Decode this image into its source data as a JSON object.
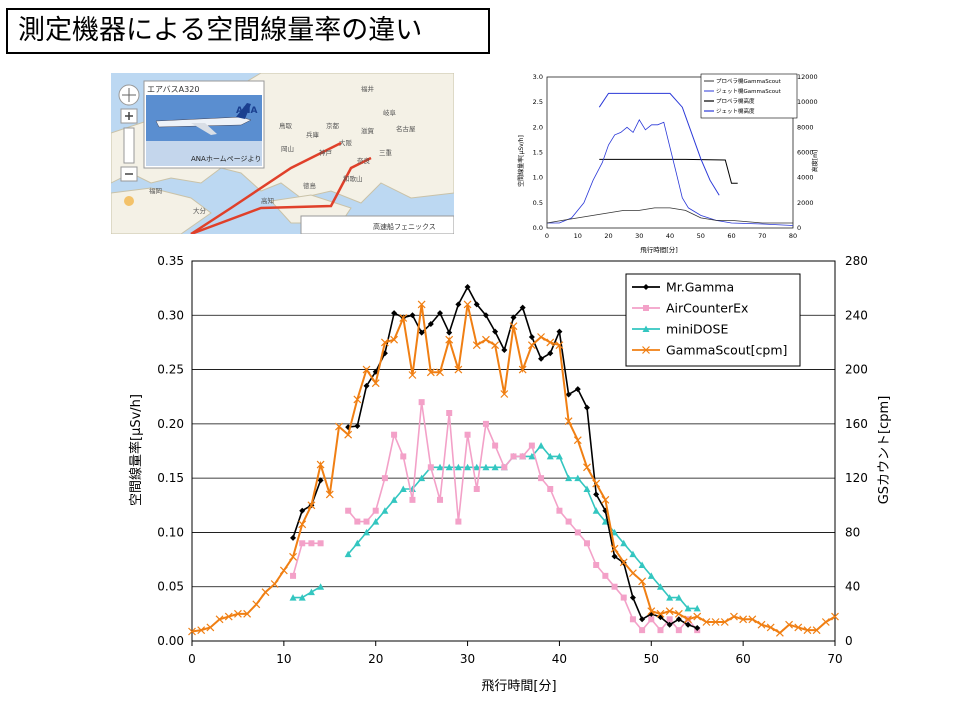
{
  "title": "測定機器による空間線量率の違い",
  "map": {
    "caption": "エアバスA320",
    "brand": "ANA",
    "brand_sub": "ANAホームページより",
    "ship_label": "高速船フェニックス",
    "colors": {
      "sea": "#bcd8f2",
      "land": "#f4f1e6",
      "route": "#e0402a"
    },
    "icons": [
      "zoom-in-icon",
      "zoom-out-icon",
      "pan-icon",
      "pegman-icon",
      "airplane-icon"
    ],
    "places": [
      "福井",
      "京都",
      "奈良",
      "岐阜",
      "名古屋",
      "大阪",
      "神戸",
      "三重",
      "和歌山",
      "福岡",
      "大分",
      "広島",
      "徳島",
      "高知",
      "岡山",
      "鳥取",
      "兵庫",
      "滋賀"
    ]
  },
  "inset": {
    "legend": [
      "プロペラ機GammaScout",
      "ジェット機GammaScout",
      "プロペラ機高度",
      "ジェット機高度"
    ],
    "xlabel": "飛行時間[分]",
    "ylabel": "空間線量率[μSv/h]",
    "y2label": "高度[m]",
    "xticks": [
      0,
      10,
      20,
      30,
      40,
      50,
      60,
      70,
      80
    ],
    "yticks": [
      "0.0",
      "0.5",
      "1.0",
      "1.5",
      "2.0",
      "2.5",
      "3.0"
    ],
    "y2ticks": [
      0,
      2000,
      4000,
      6000,
      8000,
      10000,
      12000
    ]
  },
  "chart_data": {
    "type": "line",
    "title": "",
    "xlabel": "飛行時間[分]",
    "ylabel": "空間線量率[μSv/h]",
    "y2label": "GSカウント[cpm]",
    "xlim": [
      0,
      70
    ],
    "ylim": [
      0,
      0.35
    ],
    "y2lim": [
      0,
      280
    ],
    "xticks": [
      0,
      10,
      20,
      30,
      40,
      50,
      60,
      70
    ],
    "yticks": [
      "0.00",
      "0.05",
      "0.10",
      "0.15",
      "0.20",
      "0.25",
      "0.30",
      "0.35"
    ],
    "y2ticks": [
      0,
      40,
      80,
      120,
      160,
      200,
      240,
      280
    ],
    "grid": true,
    "legend_position": "top-right",
    "series": [
      {
        "name": "Mr.Gamma",
        "axis": "left",
        "color": "#000000",
        "marker": "diamond",
        "points": [
          [
            11,
            0.095
          ],
          [
            12,
            0.12
          ],
          [
            13,
            0.125
          ],
          [
            14,
            0.148
          ],
          [
            17,
            0.197
          ],
          [
            18,
            0.198
          ],
          [
            19,
            0.235
          ],
          [
            20,
            0.248
          ],
          [
            21,
            0.265
          ],
          [
            22,
            0.302
          ],
          [
            23,
            0.298
          ],
          [
            24,
            0.3
          ],
          [
            25,
            0.284
          ],
          [
            26,
            0.292
          ],
          [
            27,
            0.302
          ],
          [
            28,
            0.284
          ],
          [
            29,
            0.31
          ],
          [
            30,
            0.326
          ],
          [
            31,
            0.31
          ],
          [
            32,
            0.3
          ],
          [
            33,
            0.285
          ],
          [
            34,
            0.268
          ],
          [
            35,
            0.298
          ],
          [
            36,
            0.307
          ],
          [
            37,
            0.28
          ],
          [
            38,
            0.26
          ],
          [
            39,
            0.265
          ],
          [
            40,
            0.285
          ],
          [
            41,
            0.227
          ],
          [
            42,
            0.232
          ],
          [
            43,
            0.215
          ],
          [
            44,
            0.135
          ],
          [
            45,
            0.12
          ],
          [
            46,
            0.078
          ],
          [
            47,
            0.072
          ],
          [
            48,
            0.04
          ],
          [
            49,
            0.02
          ],
          [
            50,
            0.025
          ],
          [
            51,
            0.022
          ],
          [
            52,
            0.015
          ],
          [
            53,
            0.02
          ],
          [
            54,
            0.015
          ],
          [
            55,
            0.012
          ]
        ]
      },
      {
        "name": "AirCounterEx",
        "axis": "left",
        "color": "#f3a1c8",
        "marker": "square",
        "points": [
          [
            11,
            0.06
          ],
          [
            12,
            0.09
          ],
          [
            13,
            0.09
          ],
          [
            14,
            0.09
          ],
          [
            17,
            0.12
          ],
          [
            18,
            0.11
          ],
          [
            19,
            0.11
          ],
          [
            20,
            0.12
          ],
          [
            21,
            0.15
          ],
          [
            22,
            0.19
          ],
          [
            23,
            0.17
          ],
          [
            24,
            0.13
          ],
          [
            25,
            0.22
          ],
          [
            26,
            0.16
          ],
          [
            27,
            0.13
          ],
          [
            28,
            0.21
          ],
          [
            29,
            0.11
          ],
          [
            30,
            0.19
          ],
          [
            31,
            0.14
          ],
          [
            32,
            0.2
          ],
          [
            33,
            0.18
          ],
          [
            34,
            0.16
          ],
          [
            35,
            0.17
          ],
          [
            36,
            0.17
          ],
          [
            37,
            0.18
          ],
          [
            38,
            0.15
          ],
          [
            39,
            0.14
          ],
          [
            40,
            0.12
          ],
          [
            41,
            0.11
          ],
          [
            42,
            0.1
          ],
          [
            43,
            0.09
          ],
          [
            44,
            0.07
          ],
          [
            45,
            0.06
          ],
          [
            46,
            0.05
          ],
          [
            47,
            0.04
          ],
          [
            48,
            0.02
          ],
          [
            49,
            0.01
          ],
          [
            50,
            0.02
          ],
          [
            51,
            0.01
          ],
          [
            52,
            0.02
          ],
          [
            53,
            0.01
          ],
          [
            54,
            0.02
          ],
          [
            55,
            0.01
          ]
        ]
      },
      {
        "name": "miniDOSE",
        "axis": "left",
        "color": "#33c6c0",
        "marker": "triangle",
        "points": [
          [
            11,
            0.04
          ],
          [
            12,
            0.04
          ],
          [
            13,
            0.045
          ],
          [
            14,
            0.05
          ],
          [
            17,
            0.08
          ],
          [
            18,
            0.09
          ],
          [
            19,
            0.1
          ],
          [
            20,
            0.11
          ],
          [
            21,
            0.12
          ],
          [
            22,
            0.13
          ],
          [
            23,
            0.14
          ],
          [
            24,
            0.14
          ],
          [
            25,
            0.15
          ],
          [
            26,
            0.16
          ],
          [
            27,
            0.16
          ],
          [
            28,
            0.16
          ],
          [
            29,
            0.16
          ],
          [
            30,
            0.16
          ],
          [
            31,
            0.16
          ],
          [
            32,
            0.16
          ],
          [
            33,
            0.16
          ],
          [
            34,
            0.16
          ],
          [
            35,
            0.17
          ],
          [
            36,
            0.17
          ],
          [
            37,
            0.17
          ],
          [
            38,
            0.18
          ],
          [
            39,
            0.17
          ],
          [
            40,
            0.17
          ],
          [
            41,
            0.15
          ],
          [
            42,
            0.15
          ],
          [
            43,
            0.14
          ],
          [
            44,
            0.12
          ],
          [
            45,
            0.11
          ],
          [
            46,
            0.1
          ],
          [
            47,
            0.09
          ],
          [
            48,
            0.08
          ],
          [
            49,
            0.07
          ],
          [
            50,
            0.06
          ],
          [
            51,
            0.05
          ],
          [
            52,
            0.04
          ],
          [
            53,
            0.04
          ],
          [
            54,
            0.03
          ],
          [
            55,
            0.03
          ]
        ]
      },
      {
        "name": "GammaScout[cpm]",
        "axis": "right",
        "color": "#f07f13",
        "marker": "x",
        "points": [
          [
            0,
            7
          ],
          [
            1,
            8
          ],
          [
            2,
            10
          ],
          [
            3,
            16
          ],
          [
            4,
            18
          ],
          [
            5,
            20
          ],
          [
            6,
            20
          ],
          [
            7,
            27
          ],
          [
            8,
            36
          ],
          [
            9,
            42
          ],
          [
            10,
            52
          ],
          [
            11,
            62
          ],
          [
            12,
            86
          ],
          [
            13,
            100
          ],
          [
            14,
            130
          ],
          [
            15,
            108
          ],
          [
            16,
            158
          ],
          [
            17,
            152
          ],
          [
            18,
            178
          ],
          [
            19,
            200
          ],
          [
            20,
            190
          ],
          [
            21,
            220
          ],
          [
            22,
            222
          ],
          [
            23,
            238
          ],
          [
            24,
            196
          ],
          [
            25,
            248
          ],
          [
            26,
            198
          ],
          [
            27,
            198
          ],
          [
            28,
            222
          ],
          [
            29,
            200
          ],
          [
            30,
            248
          ],
          [
            31,
            218
          ],
          [
            32,
            222
          ],
          [
            33,
            218
          ],
          [
            34,
            182
          ],
          [
            35,
            232
          ],
          [
            36,
            200
          ],
          [
            37,
            218
          ],
          [
            38,
            224
          ],
          [
            39,
            220
          ],
          [
            40,
            218
          ],
          [
            41,
            162
          ],
          [
            42,
            148
          ],
          [
            43,
            128
          ],
          [
            44,
            116
          ],
          [
            45,
            104
          ],
          [
            46,
            68
          ],
          [
            47,
            58
          ],
          [
            48,
            50
          ],
          [
            49,
            44
          ],
          [
            50,
            22
          ],
          [
            51,
            20
          ],
          [
            52,
            22
          ],
          [
            53,
            20
          ],
          [
            54,
            16
          ],
          [
            55,
            18
          ],
          [
            56,
            14
          ],
          [
            57,
            14
          ],
          [
            58,
            14
          ],
          [
            59,
            18
          ],
          [
            60,
            16
          ],
          [
            61,
            16
          ],
          [
            62,
            12
          ],
          [
            63,
            10
          ],
          [
            64,
            6
          ],
          [
            65,
            12
          ],
          [
            66,
            10
          ],
          [
            67,
            8
          ],
          [
            68,
            8
          ],
          [
            69,
            14
          ],
          [
            70,
            18
          ]
        ]
      }
    ]
  }
}
